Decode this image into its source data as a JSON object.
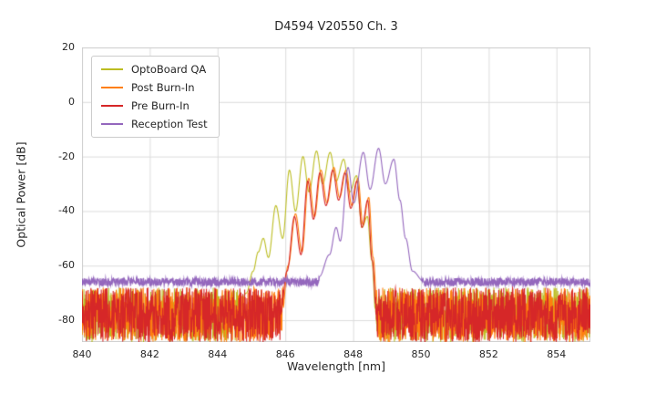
{
  "chart_data": {
    "type": "line",
    "title": "D4594 V20550 Ch. 3",
    "xlabel": "Wavelength [nm]",
    "ylabel": "Optical Power [dB]",
    "xlim": [
      840,
      855
    ],
    "ylim": [
      -88,
      20
    ],
    "xticks": [
      840,
      842,
      844,
      846,
      848,
      850,
      852,
      854
    ],
    "yticks": [
      20,
      0,
      -20,
      -40,
      -60,
      -80
    ],
    "grid": true,
    "grid_color": "#dcdcdc",
    "frame_color": "#cccccc",
    "legend_position": "upper-left",
    "sample_step_nm": 0.008,
    "series": [
      {
        "name": "OptoBoard QA",
        "color": "#bcbd22",
        "seed": 101,
        "noise": {
          "mean": -78,
          "amp": 10
        },
        "envelope": [
          [
            844.55,
            -80
          ],
          [
            844.85,
            -70
          ],
          [
            845.05,
            -62
          ],
          [
            845.2,
            -55
          ],
          [
            845.35,
            -50
          ],
          [
            845.5,
            -57
          ],
          [
            845.72,
            -38
          ],
          [
            845.92,
            -50
          ],
          [
            846.12,
            -25
          ],
          [
            846.3,
            -40
          ],
          [
            846.52,
            -20
          ],
          [
            846.7,
            -33
          ],
          [
            846.92,
            -18
          ],
          [
            847.1,
            -30
          ],
          [
            847.32,
            -18.5
          ],
          [
            847.5,
            -29
          ],
          [
            847.72,
            -21
          ],
          [
            847.9,
            -33
          ],
          [
            848.1,
            -27
          ],
          [
            848.26,
            -46
          ],
          [
            848.42,
            -42
          ],
          [
            848.55,
            -58
          ],
          [
            848.68,
            -80
          ]
        ]
      },
      {
        "name": "Post Burn-In",
        "color": "#ff7f0e",
        "seed": 202,
        "noise": {
          "mean": -78,
          "amp": 10
        },
        "envelope": [
          [
            845.9,
            -78
          ],
          [
            846.08,
            -60
          ],
          [
            846.3,
            -41
          ],
          [
            846.49,
            -55
          ],
          [
            846.69,
            -28
          ],
          [
            846.86,
            -42
          ],
          [
            847.05,
            -25
          ],
          [
            847.23,
            -37
          ],
          [
            847.43,
            -24
          ],
          [
            847.6,
            -35
          ],
          [
            847.79,
            -25
          ],
          [
            847.96,
            -38
          ],
          [
            848.14,
            -28
          ],
          [
            848.29,
            -45
          ],
          [
            848.46,
            -35
          ],
          [
            848.59,
            -57
          ],
          [
            848.73,
            -80
          ]
        ]
      },
      {
        "name": "Pre Burn-In",
        "color": "#d62728",
        "seed": 303,
        "noise": {
          "mean": -78,
          "amp": 10
        },
        "envelope": [
          [
            845.85,
            -78
          ],
          [
            846.05,
            -62
          ],
          [
            846.27,
            -42
          ],
          [
            846.46,
            -56
          ],
          [
            846.66,
            -29
          ],
          [
            846.83,
            -43
          ],
          [
            847.02,
            -26
          ],
          [
            847.2,
            -38
          ],
          [
            847.4,
            -25
          ],
          [
            847.57,
            -36
          ],
          [
            847.76,
            -26
          ],
          [
            847.93,
            -39
          ],
          [
            848.11,
            -29
          ],
          [
            848.26,
            -46
          ],
          [
            848.43,
            -36
          ],
          [
            848.56,
            -58
          ],
          [
            848.7,
            -80
          ]
        ]
      },
      {
        "name": "Reception Test",
        "color": "#9467bd",
        "seed": 404,
        "noise": {
          "mean": -66,
          "amp": 1.5
        },
        "envelope": [
          [
            847.0,
            -64
          ],
          [
            847.3,
            -56
          ],
          [
            847.5,
            -46
          ],
          [
            847.62,
            -51
          ],
          [
            847.85,
            -24
          ],
          [
            848.02,
            -37
          ],
          [
            848.3,
            -18.5
          ],
          [
            848.5,
            -32
          ],
          [
            848.75,
            -17
          ],
          [
            848.95,
            -30
          ],
          [
            849.2,
            -21
          ],
          [
            849.38,
            -36
          ],
          [
            849.55,
            -50
          ],
          [
            849.75,
            -62
          ],
          [
            850.1,
            -66
          ]
        ]
      }
    ]
  }
}
